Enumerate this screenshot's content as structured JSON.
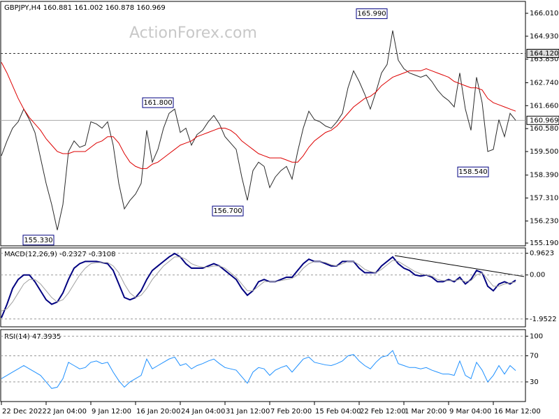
{
  "watermark": "ActionForex.com",
  "chart_data": [
    {
      "type": "line",
      "title": "GBPJPY,H4  160.881 161.002 160.878 160.969",
      "ylim": [
        155.06,
        166.57
      ],
      "yticks": [
        {
          "value": 166.01,
          "label": "166.010"
        },
        {
          "value": 164.93,
          "label": "164.930"
        },
        {
          "value": 163.85,
          "label": "163.850"
        },
        {
          "value": 162.74,
          "label": "162.740"
        },
        {
          "value": 161.66,
          "label": "161.660"
        },
        {
          "value": 160.58,
          "label": "160.580"
        },
        {
          "value": 159.5,
          "label": "159.500"
        },
        {
          "value": 158.39,
          "label": "158.390"
        },
        {
          "value": 157.31,
          "label": "157.310"
        },
        {
          "value": 156.23,
          "label": "156.230"
        },
        {
          "value": 155.19,
          "label": "155.190"
        }
      ],
      "hlines": [
        {
          "value": 164.12,
          "label": "164.120",
          "style": "dashed"
        },
        {
          "value": 160.969,
          "label": "160.969",
          "style": "solid"
        }
      ],
      "annotations": [
        {
          "value": 165.99,
          "label": "165.990"
        },
        {
          "value": 161.8,
          "label": "161.800"
        },
        {
          "value": 156.7,
          "label": "156.700"
        },
        {
          "value": 155.33,
          "label": "155.330"
        },
        {
          "value": 158.54,
          "label": "158.540"
        }
      ],
      "series": [
        {
          "color": "#2a2a2a",
          "values": [
            159.3,
            160.0,
            160.6,
            160.9,
            161.5,
            161.0,
            160.4,
            159.2,
            158.0,
            157.0,
            155.8,
            157.0,
            159.5,
            160.0,
            159.7,
            159.8,
            160.9,
            160.8,
            160.6,
            160.9,
            159.8,
            158.0,
            156.8,
            157.2,
            157.5,
            158.0,
            160.5,
            159.0,
            159.6,
            160.6,
            161.3,
            161.5,
            160.4,
            160.6,
            159.8,
            160.3,
            160.5,
            160.9,
            161.2,
            160.8,
            160.2,
            159.9,
            159.6,
            158.3,
            157.2,
            158.6,
            159.0,
            158.8,
            157.8,
            158.3,
            158.6,
            158.8,
            158.2,
            159.5,
            160.6,
            161.4,
            161.0,
            160.9,
            160.7,
            160.6,
            160.9,
            161.3,
            162.5,
            163.3,
            162.8,
            162.2,
            161.5,
            162.3,
            163.2,
            163.6,
            165.2,
            163.8,
            163.4,
            163.2,
            163.1,
            163.0,
            163.1,
            162.8,
            162.4,
            162.1,
            161.9,
            161.6,
            163.2,
            161.5,
            160.5,
            163.0,
            161.8,
            159.5,
            159.6,
            161.0,
            160.2,
            161.3,
            160.97
          ]
        },
        {
          "color": "#dd0000",
          "values": [
            163.7,
            163.2,
            162.6,
            162.0,
            161.5,
            161.1,
            160.8,
            160.5,
            160.1,
            159.8,
            159.5,
            159.4,
            159.4,
            159.5,
            159.5,
            159.5,
            159.7,
            159.9,
            160.0,
            160.2,
            160.2,
            159.9,
            159.4,
            159.0,
            158.8,
            158.7,
            158.7,
            158.9,
            159.0,
            159.2,
            159.4,
            159.6,
            159.8,
            159.9,
            160.0,
            160.2,
            160.3,
            160.4,
            160.5,
            160.6,
            160.6,
            160.5,
            160.3,
            160.0,
            159.8,
            159.6,
            159.4,
            159.3,
            159.2,
            159.2,
            159.2,
            159.1,
            159.0,
            159.0,
            159.3,
            159.7,
            160.0,
            160.2,
            160.4,
            160.5,
            160.7,
            161.0,
            161.3,
            161.6,
            161.8,
            162.0,
            162.1,
            162.3,
            162.6,
            162.8,
            163.0,
            163.1,
            163.2,
            163.3,
            163.3,
            163.3,
            163.4,
            163.3,
            163.2,
            163.1,
            163.0,
            162.8,
            162.7,
            162.6,
            162.5,
            162.5,
            162.4,
            162.0,
            161.8,
            161.7,
            161.6,
            161.5,
            161.4
          ]
        }
      ]
    },
    {
      "type": "line",
      "title": "MACD(12,26,9) -0.2327 -0.3108",
      "ylim": [
        -2.3,
        1.2
      ],
      "yticks": [
        0.9623,
        {
          "value": 0,
          "label": "0.00"
        },
        -1.9522
      ],
      "series": [
        {
          "color": "#000080",
          "values": [
            -1.9,
            -1.3,
            -0.6,
            -0.2,
            0.0,
            0.0,
            -0.3,
            -0.7,
            -1.1,
            -1.3,
            -1.2,
            -0.8,
            -0.2,
            0.3,
            0.5,
            0.6,
            0.6,
            0.6,
            0.55,
            0.5,
            0.2,
            -0.4,
            -1.0,
            -1.1,
            -1.0,
            -0.7,
            -0.2,
            0.2,
            0.4,
            0.6,
            0.8,
            0.95,
            0.8,
            0.5,
            0.3,
            0.3,
            0.3,
            0.4,
            0.5,
            0.4,
            0.2,
            0.0,
            -0.2,
            -0.6,
            -0.9,
            -0.7,
            -0.3,
            -0.2,
            -0.3,
            -0.3,
            -0.2,
            -0.1,
            -0.1,
            0.2,
            0.5,
            0.7,
            0.6,
            0.6,
            0.5,
            0.4,
            0.4,
            0.6,
            0.6,
            0.6,
            0.3,
            0.1,
            0.1,
            0.1,
            0.4,
            0.6,
            0.8,
            0.5,
            0.3,
            0.2,
            0.0,
            -0.05,
            0.0,
            -0.1,
            -0.3,
            -0.3,
            -0.2,
            -0.3,
            -0.1,
            -0.4,
            -0.2,
            0.2,
            0.1,
            -0.5,
            -0.7,
            -0.4,
            -0.3,
            -0.4,
            -0.23
          ]
        },
        {
          "color": "#a0a0a0",
          "values": [
            -1.6,
            -1.5,
            -1.2,
            -0.8,
            -0.4,
            -0.2,
            -0.2,
            -0.4,
            -0.7,
            -1.0,
            -1.2,
            -1.1,
            -0.8,
            -0.4,
            0.0,
            0.3,
            0.5,
            0.55,
            0.55,
            0.55,
            0.4,
            0.1,
            -0.4,
            -0.8,
            -1.0,
            -0.9,
            -0.6,
            -0.2,
            0.1,
            0.4,
            0.6,
            0.8,
            0.8,
            0.7,
            0.5,
            0.4,
            0.35,
            0.35,
            0.4,
            0.4,
            0.3,
            0.1,
            -0.1,
            -0.4,
            -0.7,
            -0.7,
            -0.5,
            -0.3,
            -0.3,
            -0.3,
            -0.25,
            -0.2,
            -0.15,
            0.0,
            0.3,
            0.5,
            0.6,
            0.6,
            0.55,
            0.45,
            0.4,
            0.5,
            0.6,
            0.6,
            0.45,
            0.25,
            0.15,
            0.1,
            0.25,
            0.45,
            0.65,
            0.6,
            0.45,
            0.3,
            0.15,
            0.05,
            0.0,
            -0.05,
            -0.2,
            -0.25,
            -0.25,
            -0.25,
            -0.2,
            -0.3,
            -0.25,
            0.0,
            0.1,
            -0.2,
            -0.5,
            -0.5,
            -0.4,
            -0.35,
            -0.31
          ]
        }
      ]
    },
    {
      "type": "line",
      "title": "RSI(14) 47.3935",
      "ylim": [
        0,
        110
      ],
      "yticks": [
        100,
        70,
        30
      ],
      "categories": [
        "22 Dec 2022",
        null,
        null,
        null,
        null,
        null,
        null,
        null,
        "2 Jan 04:00",
        null,
        null,
        null,
        null,
        null,
        null,
        null,
        "9 Jan 12:00",
        null,
        null,
        null,
        null,
        null,
        null,
        null,
        "16 Jan 20:00",
        null,
        null,
        null,
        null,
        null,
        null,
        null,
        "24 Jan 04:00",
        null,
        null,
        null,
        null,
        null,
        null,
        null,
        "31 Jan 12:00",
        null,
        null,
        null,
        null,
        null,
        null,
        null,
        "7 Feb 20:00",
        null,
        null,
        null,
        null,
        null,
        null,
        null,
        "15 Feb 04:00",
        null,
        null,
        null,
        null,
        null,
        null,
        null,
        "22 Feb 12:00",
        null,
        null,
        null,
        null,
        null,
        null,
        null,
        "1 Mar 20:00",
        null,
        null,
        null,
        null,
        null,
        null,
        null,
        "9 Mar 04:00",
        null,
        null,
        null,
        null,
        null,
        null,
        null,
        "16 Mar 12:00",
        null,
        null,
        null,
        null
      ],
      "series": [
        {
          "color": "#1e90ff",
          "values": [
            35,
            40,
            45,
            50,
            55,
            50,
            45,
            40,
            30,
            20,
            22,
            35,
            60,
            55,
            50,
            52,
            60,
            62,
            58,
            60,
            45,
            32,
            22,
            30,
            35,
            40,
            65,
            50,
            55,
            60,
            65,
            68,
            55,
            58,
            50,
            55,
            58,
            62,
            65,
            58,
            52,
            50,
            48,
            38,
            28,
            45,
            52,
            50,
            40,
            48,
            52,
            55,
            45,
            55,
            65,
            68,
            60,
            58,
            56,
            55,
            58,
            62,
            70,
            72,
            62,
            55,
            50,
            60,
            68,
            70,
            78,
            58,
            55,
            52,
            52,
            50,
            52,
            48,
            45,
            42,
            42,
            40,
            62,
            40,
            35,
            60,
            48,
            30,
            40,
            55,
            42,
            55,
            47.39
          ]
        }
      ]
    }
  ]
}
